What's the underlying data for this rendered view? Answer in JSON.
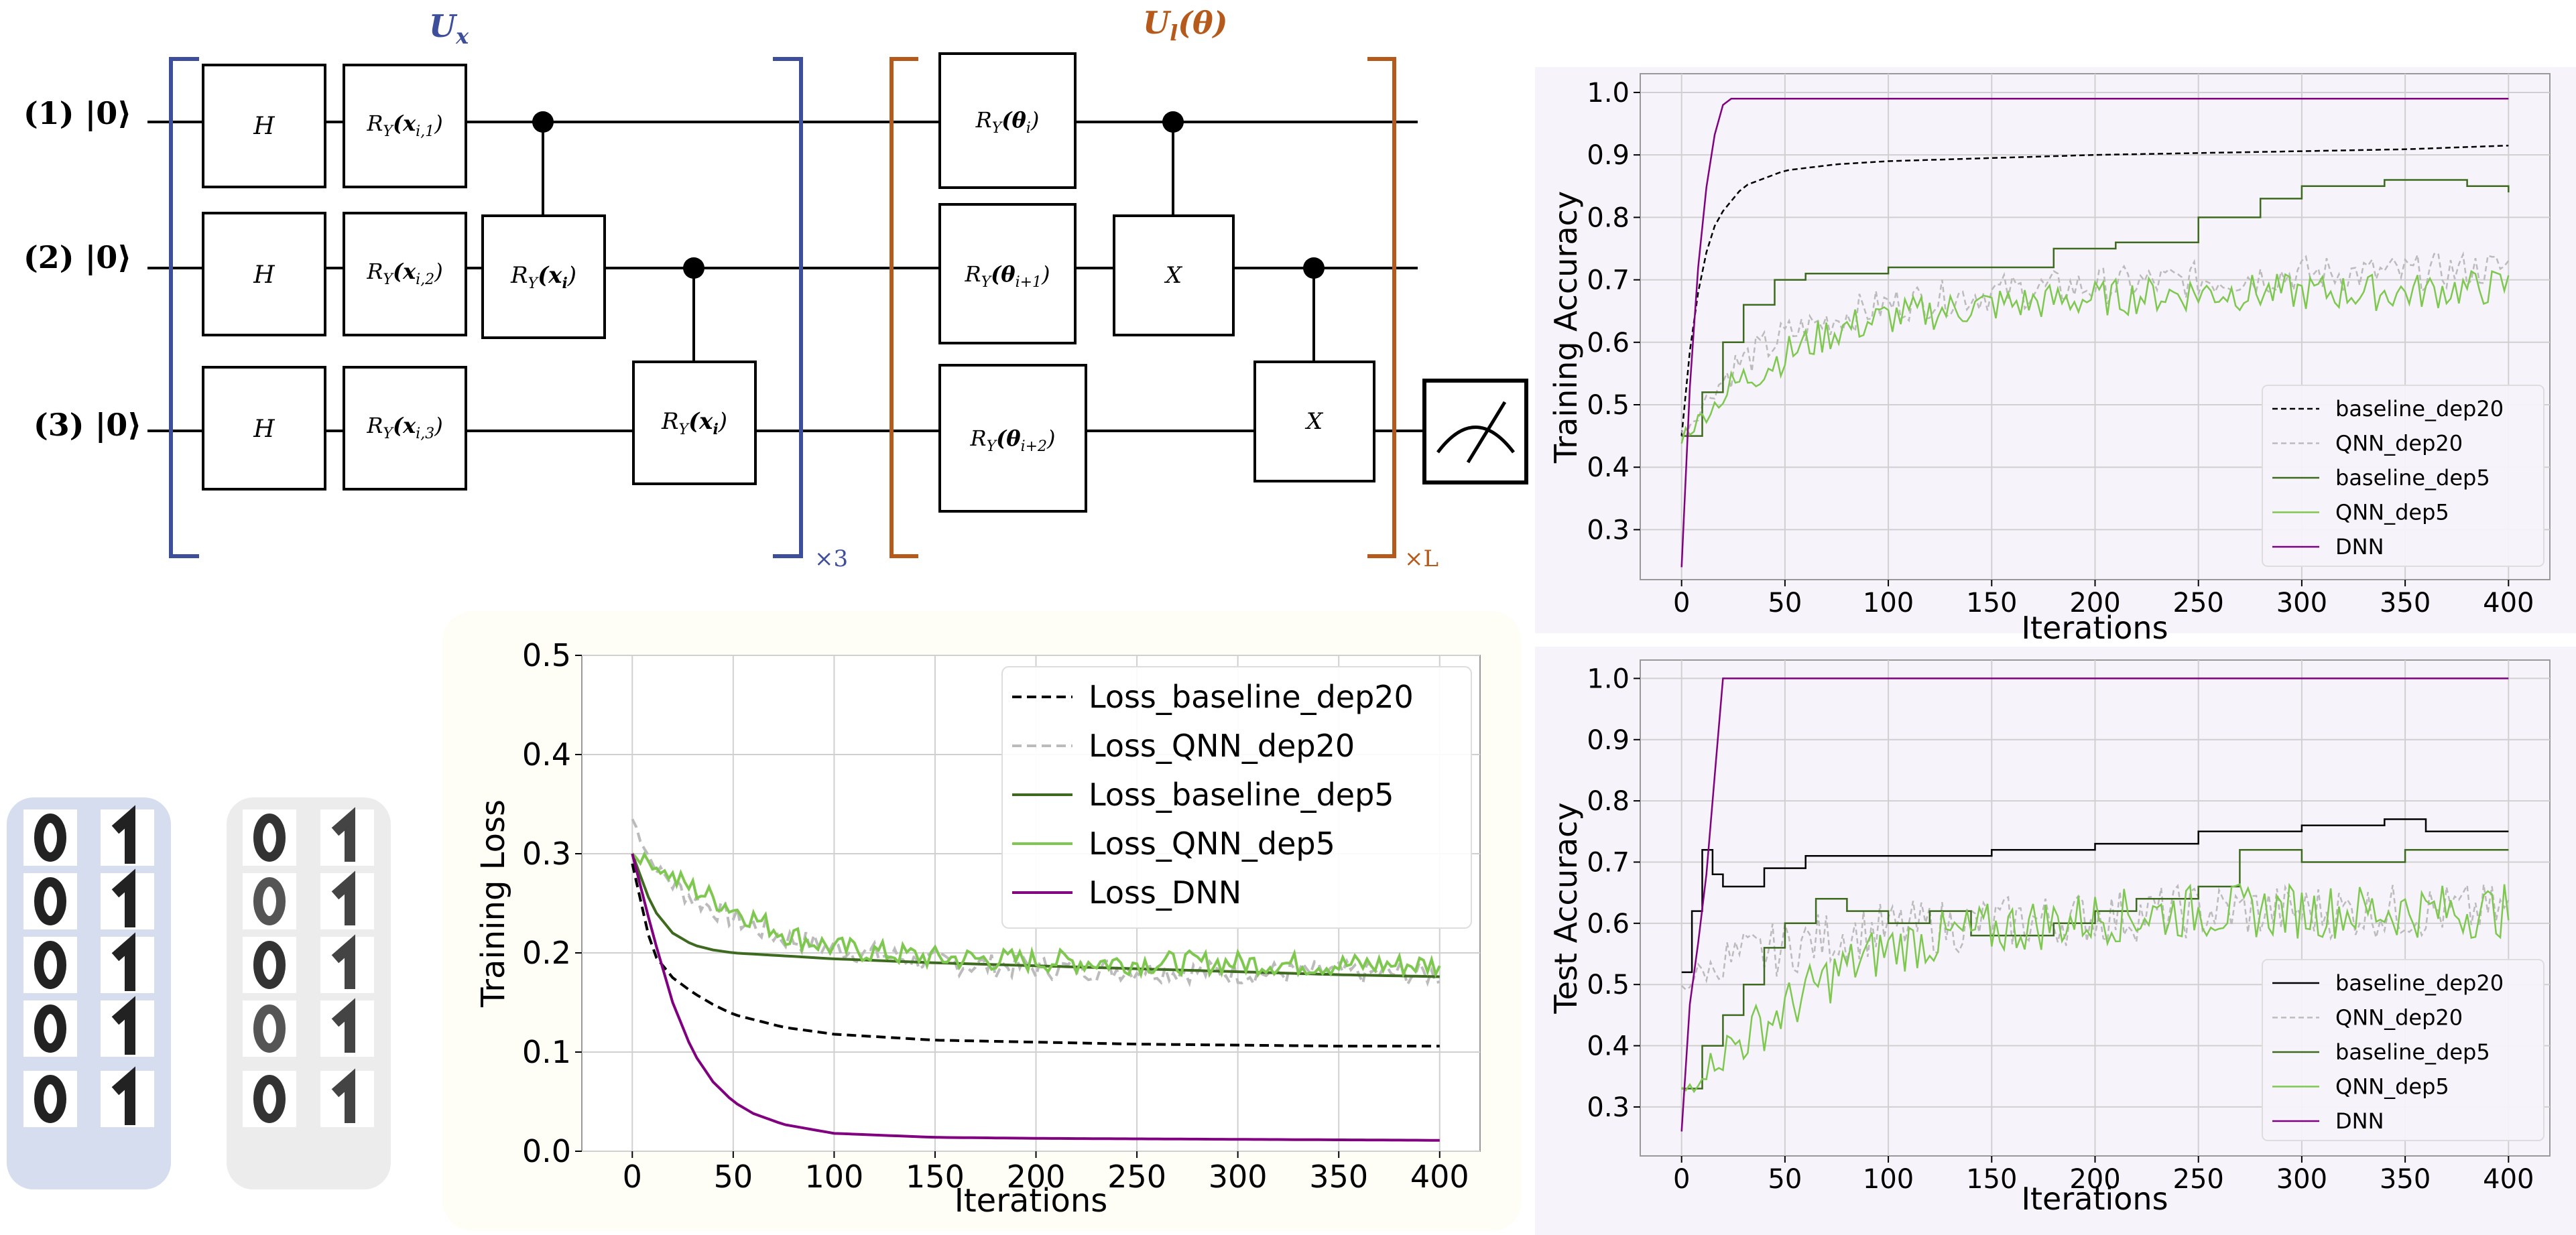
{
  "circuit": {
    "encoder_label": "U",
    "encoder_sub": "x",
    "ansatz_label": "U",
    "ansatz_sub": "l",
    "ansatz_arg": "(θ)",
    "encoder_repeat": "×3",
    "ansatz_repeat": "×L",
    "qubits": [
      {
        "index": "(1)",
        "state": "|0⟩"
      },
      {
        "index": "(2)",
        "state": "|0⟩"
      },
      {
        "index": "(3)",
        "state": "|0⟩"
      }
    ],
    "gates": {
      "h": "H",
      "ry1": "R",
      "ry1_sub": "Y",
      "ry1_arg": "(x",
      "ry1_arg_sub": "i,1",
      "ry2_arg_sub": "i,2",
      "ry3_arg_sub": "i,3",
      "cry_arg": "(x",
      "cry_arg_sub": "i",
      "theta_arg": "(θ",
      "theta_sub_1": "i",
      "theta_sub_2": "i+1",
      "theta_sub_3": "i+2",
      "x_gate": "X"
    }
  },
  "digits": {
    "groups": [
      {
        "name": "class-0-1",
        "color": "#d5ddef"
      },
      {
        "name": "class-0-1-noisy",
        "color": "#ececec"
      }
    ]
  },
  "chart_data": [
    {
      "type": "line",
      "id": "loss",
      "xlabel": "Iterations",
      "ylabel": "Training Loss",
      "xlim": [
        -25,
        420
      ],
      "ylim": [
        0,
        0.5
      ],
      "xticks": [
        "0",
        "50",
        "100",
        "150",
        "200",
        "250",
        "300",
        "350",
        "400"
      ],
      "yticks": [
        "0.0",
        "0.1",
        "0.2",
        "0.3",
        "0.4",
        "0.5"
      ],
      "legend_position": "top-right",
      "series": [
        {
          "name": "Loss_baseline_dep20",
          "color": "#000000",
          "style": "dashed",
          "x": [
            0,
            10,
            20,
            30,
            40,
            50,
            75,
            100,
            150,
            200,
            250,
            300,
            350,
            400
          ],
          "values": [
            0.29,
            0.2,
            0.175,
            0.16,
            0.148,
            0.138,
            0.125,
            0.118,
            0.112,
            0.11,
            0.108,
            0.107,
            0.106,
            0.106
          ]
        },
        {
          "name": "Loss_QNN_dep20",
          "color": "#bbbbbb",
          "style": "dashed",
          "noisy": true,
          "x": [
            0,
            10,
            20,
            30,
            50,
            75,
            100,
            150,
            200,
            250,
            300,
            350,
            400
          ],
          "values": [
            0.335,
            0.29,
            0.27,
            0.255,
            0.235,
            0.215,
            0.205,
            0.19,
            0.185,
            0.183,
            0.18,
            0.18,
            0.178
          ]
        },
        {
          "name": "Loss_baseline_dep5",
          "color": "#3d6a1e",
          "style": "solid",
          "x": [
            0,
            10,
            20,
            30,
            40,
            50,
            75,
            100,
            150,
            200,
            250,
            300,
            350,
            400
          ],
          "values": [
            0.3,
            0.245,
            0.22,
            0.208,
            0.203,
            0.2,
            0.197,
            0.194,
            0.19,
            0.187,
            0.184,
            0.181,
            0.178,
            0.176
          ]
        },
        {
          "name": "Loss_QNN_dep5",
          "color": "#7ec850",
          "style": "solid",
          "noisy": true,
          "x": [
            0,
            10,
            20,
            30,
            50,
            75,
            100,
            150,
            200,
            250,
            300,
            350,
            400
          ],
          "values": [
            0.3,
            0.29,
            0.275,
            0.265,
            0.245,
            0.22,
            0.205,
            0.195,
            0.192,
            0.19,
            0.19,
            0.188,
            0.188
          ]
        },
        {
          "name": "Loss_DNN",
          "color": "#800080",
          "style": "solid",
          "x": [
            0,
            10,
            20,
            30,
            40,
            50,
            60,
            75,
            100,
            150,
            200,
            300,
            400
          ],
          "values": [
            0.3,
            0.22,
            0.15,
            0.1,
            0.07,
            0.05,
            0.038,
            0.027,
            0.018,
            0.014,
            0.013,
            0.012,
            0.011
          ]
        }
      ]
    },
    {
      "type": "line",
      "id": "train-acc",
      "xlabel": "Iterations",
      "ylabel": "Training Accuracy",
      "xlim": [
        -20,
        420
      ],
      "ylim": [
        0.22,
        1.03
      ],
      "xticks": [
        "0",
        "50",
        "100",
        "150",
        "200",
        "250",
        "300",
        "350",
        "400"
      ],
      "yticks": [
        "0.3",
        "0.4",
        "0.5",
        "0.6",
        "0.7",
        "0.8",
        "0.9",
        "1.0"
      ],
      "legend_position": "bottom-right",
      "series": [
        {
          "name": "baseline_dep20",
          "color": "#000000",
          "style": "dashed",
          "x": [
            0,
            5,
            10,
            15,
            20,
            30,
            50,
            75,
            100,
            150,
            200,
            250,
            300,
            350,
            400
          ],
          "values": [
            0.45,
            0.62,
            0.72,
            0.78,
            0.81,
            0.85,
            0.875,
            0.885,
            0.89,
            0.895,
            0.9,
            0.903,
            0.906,
            0.909,
            0.915
          ]
        },
        {
          "name": "QNN_dep20",
          "color": "#bbbbbb",
          "style": "dashed",
          "noisy": true,
          "x": [
            0,
            10,
            25,
            50,
            75,
            100,
            150,
            200,
            250,
            300,
            350,
            400
          ],
          "values": [
            0.45,
            0.5,
            0.56,
            0.61,
            0.64,
            0.66,
            0.68,
            0.69,
            0.7,
            0.71,
            0.71,
            0.72
          ]
        },
        {
          "name": "baseline_dep5",
          "color": "#3d6a1e",
          "style": "step",
          "x": [
            0,
            10,
            20,
            30,
            45,
            60,
            100,
            150,
            180,
            210,
            250,
            280,
            300,
            340,
            380,
            400
          ],
          "values": [
            0.45,
            0.52,
            0.6,
            0.66,
            0.7,
            0.71,
            0.72,
            0.72,
            0.75,
            0.76,
            0.8,
            0.83,
            0.85,
            0.86,
            0.85,
            0.84
          ]
        },
        {
          "name": "QNN_dep5",
          "color": "#7ec850",
          "style": "solid",
          "noisy": true,
          "x": [
            0,
            10,
            25,
            50,
            75,
            100,
            150,
            200,
            250,
            300,
            350,
            400
          ],
          "values": [
            0.45,
            0.48,
            0.53,
            0.58,
            0.62,
            0.64,
            0.66,
            0.67,
            0.68,
            0.68,
            0.68,
            0.69
          ]
        },
        {
          "name": "DNN",
          "color": "#800080",
          "style": "solid",
          "x": [
            0,
            5,
            10,
            15,
            20,
            22,
            400
          ],
          "values": [
            0.24,
            0.6,
            0.8,
            0.92,
            0.98,
            0.99,
            0.99
          ]
        }
      ]
    },
    {
      "type": "line",
      "id": "test-acc",
      "xlabel": "Iterations",
      "ylabel": "Test Accuracy",
      "xlim": [
        -20,
        420
      ],
      "ylim": [
        0.22,
        1.03
      ],
      "xticks": [
        "0",
        "50",
        "100",
        "150",
        "200",
        "250",
        "300",
        "350",
        "400"
      ],
      "yticks": [
        "0.3",
        "0.4",
        "0.5",
        "0.6",
        "0.7",
        "0.8",
        "0.9",
        "1.0"
      ],
      "legend_position": "bottom-right",
      "series": [
        {
          "name": "baseline_dep20",
          "color": "#000000",
          "style": "step",
          "x": [
            0,
            5,
            10,
            15,
            20,
            40,
            60,
            100,
            150,
            200,
            250,
            300,
            320,
            340,
            360,
            400
          ],
          "values": [
            0.52,
            0.62,
            0.72,
            0.68,
            0.66,
            0.69,
            0.71,
            0.71,
            0.72,
            0.73,
            0.75,
            0.76,
            0.76,
            0.77,
            0.75,
            0.75
          ]
        },
        {
          "name": "QNN_dep20",
          "color": "#bbbbbb",
          "style": "dashed",
          "noisy": true,
          "x": [
            0,
            10,
            25,
            50,
            75,
            100,
            150,
            200,
            250,
            300,
            350,
            400
          ],
          "values": [
            0.5,
            0.52,
            0.54,
            0.56,
            0.58,
            0.59,
            0.6,
            0.61,
            0.62,
            0.62,
            0.62,
            0.62
          ]
        },
        {
          "name": "baseline_dep5",
          "color": "#3d6a1e",
          "style": "step",
          "x": [
            0,
            10,
            20,
            30,
            40,
            50,
            65,
            80,
            100,
            120,
            140,
            160,
            180,
            200,
            220,
            250,
            270,
            300,
            350,
            400
          ],
          "values": [
            0.33,
            0.4,
            0.45,
            0.5,
            0.56,
            0.6,
            0.64,
            0.62,
            0.6,
            0.62,
            0.58,
            0.58,
            0.6,
            0.62,
            0.64,
            0.66,
            0.72,
            0.7,
            0.72,
            0.72
          ]
        },
        {
          "name": "QNN_dep5",
          "color": "#7ec850",
          "style": "solid",
          "noisy": true,
          "x": [
            0,
            10,
            25,
            50,
            75,
            100,
            150,
            200,
            250,
            300,
            350,
            400
          ],
          "values": [
            0.32,
            0.36,
            0.4,
            0.46,
            0.52,
            0.56,
            0.59,
            0.61,
            0.62,
            0.62,
            0.62,
            0.62
          ]
        },
        {
          "name": "DNN",
          "color": "#800080",
          "style": "solid",
          "x": [
            0,
            5,
            10,
            15,
            20,
            400
          ],
          "values": [
            0.26,
            0.52,
            0.6,
            0.8,
            1.0,
            1.0
          ]
        }
      ]
    }
  ]
}
